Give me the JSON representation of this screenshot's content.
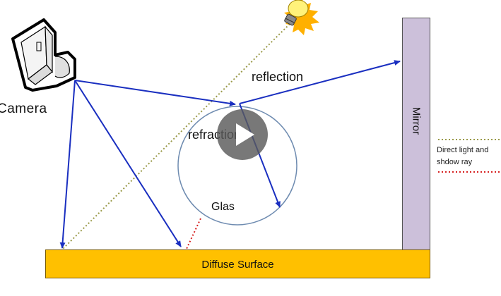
{
  "labels": {
    "camera": "Camera",
    "reflection": "reflection",
    "refraction": "refraction",
    "glas": "Glas",
    "mirror": "Mirror",
    "diffuse_surface": "Diffuse Surface"
  },
  "legend": {
    "line1": "Direct light and",
    "line2": "shdow ray"
  },
  "colors": {
    "ray": "#1a2fc0",
    "direct_light": "#9a9a4a",
    "shadow_ray": "#d62020",
    "surface": "#ffc000",
    "mirror": "#ccc0da",
    "glass_outline": "#6e8bb0"
  },
  "icons": [
    "camera-icon",
    "light-bulb-icon",
    "play-icon"
  ],
  "video_player": {
    "control": "play"
  }
}
